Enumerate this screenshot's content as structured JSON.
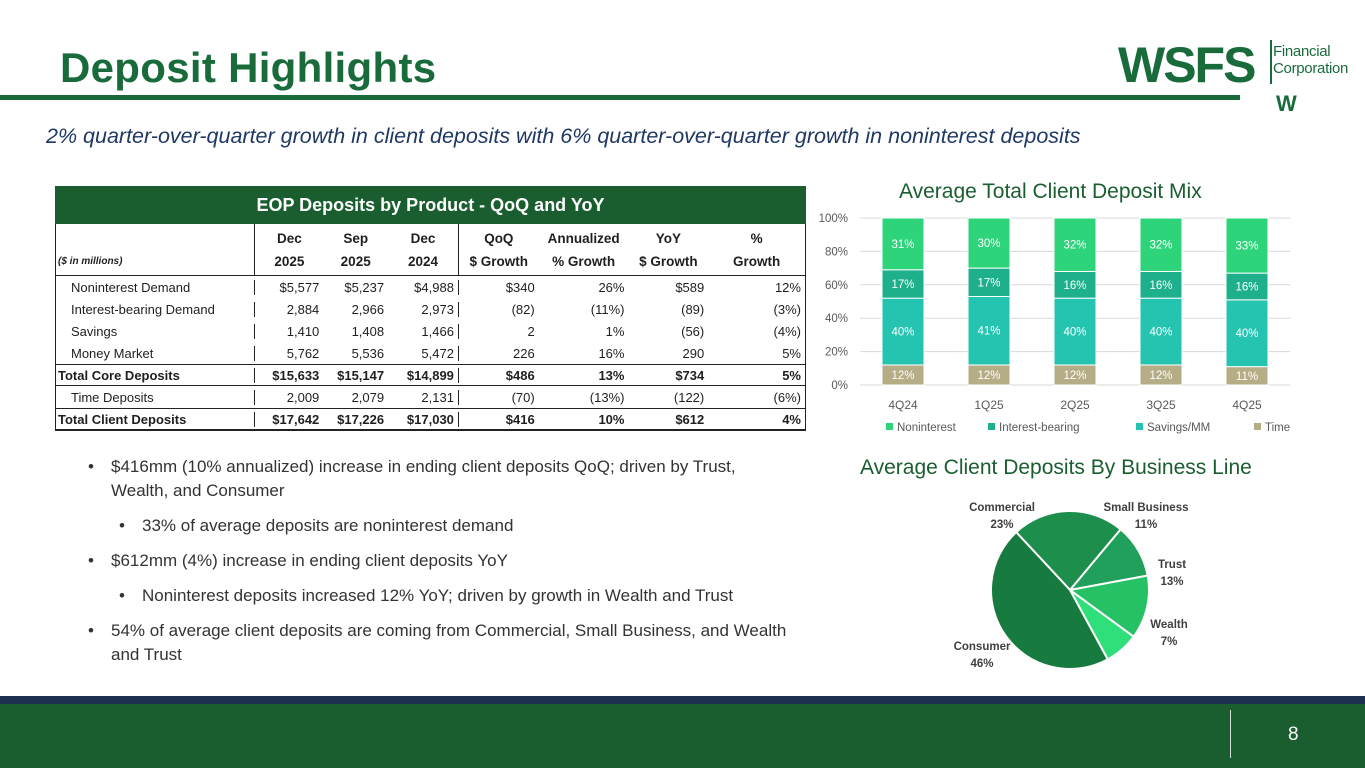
{
  "header": {
    "title": "Deposit Highlights",
    "subtitle": "2% quarter-over-quarter growth in client deposits with 6% quarter-over-quarter growth in noninterest deposits"
  },
  "logo": {
    "word": "WSFS",
    "line1": "Financial",
    "line2": "Corporation",
    "mark": "W"
  },
  "colors": {
    "brand_green": "#1a6b3c",
    "dark_green": "#1a5e30",
    "navy": "#1c3050",
    "noninterest": "#2dd47a",
    "interest_bearing": "#1db08a",
    "savings_mm": "#25c4b0",
    "time": "#b5ad85"
  },
  "table": {
    "title": "EOP Deposits by Product - QoQ and YoY",
    "unit_label": "($ in millions)",
    "headers": [
      [
        "Dec",
        "2025"
      ],
      [
        "Sep",
        "2025"
      ],
      [
        "Dec",
        "2024"
      ],
      [
        "QoQ",
        "$ Growth"
      ],
      [
        "Annualized",
        "% Growth"
      ],
      [
        "YoY",
        "$ Growth"
      ],
      [
        "%",
        "Growth"
      ]
    ],
    "rows": [
      {
        "label": "Noninterest Demand",
        "bold": false,
        "cells": [
          "$5,577",
          "$5,237",
          "$4,988",
          "$340",
          "26%",
          "$589",
          "12%"
        ]
      },
      {
        "label": "Interest-bearing Demand",
        "bold": false,
        "cells": [
          "2,884",
          "2,966",
          "2,973",
          "(82)",
          "(11%)",
          "(89)",
          "(3%)"
        ]
      },
      {
        "label": "Savings",
        "bold": false,
        "cells": [
          "1,410",
          "1,408",
          "1,466",
          "2",
          "1%",
          "(56)",
          "(4%)"
        ]
      },
      {
        "label": "Money Market",
        "bold": false,
        "cells": [
          "5,762",
          "5,536",
          "5,472",
          "226",
          "16%",
          "290",
          "5%"
        ]
      },
      {
        "label": "Total Core Deposits",
        "bold": true,
        "cells": [
          "$15,633",
          "$15,147",
          "$14,899",
          "$486",
          "13%",
          "$734",
          "5%"
        ]
      },
      {
        "label": "Time Deposits",
        "bold": false,
        "cells": [
          "2,009",
          "2,079",
          "2,131",
          "(70)",
          "(13%)",
          "(122)",
          "(6%)"
        ]
      },
      {
        "label": "Total Client Deposits",
        "bold": true,
        "cells": [
          "$17,642",
          "$17,226",
          "$17,030",
          "$416",
          "10%",
          "$612",
          "4%"
        ]
      }
    ]
  },
  "bullets": [
    {
      "level": 1,
      "text": "$416mm (10% annualized) increase in ending client deposits QoQ; driven by Trust, Wealth, and Consumer"
    },
    {
      "level": 2,
      "text": "33% of average deposits are noninterest demand"
    },
    {
      "level": 1,
      "text": "$612mm (4%) increase in ending client deposits YoY"
    },
    {
      "level": 2,
      "text": "Noninterest deposits increased 12% YoY; driven by growth in Wealth and Trust"
    },
    {
      "level": 1,
      "text": "54% of average client deposits are coming from Commercial, Small Business, and Wealth and Trust"
    }
  ],
  "bullet_glyph": "•",
  "chart_data": [
    {
      "type": "bar",
      "stacked": true,
      "title": "Average Total Client Deposit Mix",
      "categories": [
        "4Q24",
        "1Q25",
        "2Q25",
        "3Q25",
        "4Q25"
      ],
      "series": [
        {
          "name": "Time",
          "values": [
            12,
            12,
            12,
            12,
            11
          ],
          "labels": [
            "12%",
            "12%",
            "12%",
            "12%",
            "11%"
          ]
        },
        {
          "name": "Savings/MM",
          "values": [
            40,
            41,
            40,
            40,
            40
          ],
          "labels": [
            "40%",
            "41%",
            "40%",
            "40%",
            "40%"
          ]
        },
        {
          "name": "Interest-bearing",
          "values": [
            17,
            17,
            16,
            16,
            16
          ],
          "labels": [
            "17%",
            "17%",
            "16%",
            "16%",
            "16%"
          ]
        },
        {
          "name": "Noninterest",
          "values": [
            31,
            30,
            32,
            32,
            33
          ],
          "labels": [
            "31%",
            "30%",
            "32%",
            "32%",
            "33%"
          ]
        }
      ],
      "ylim": [
        0,
        100
      ],
      "yticks": [
        "0%",
        "20%",
        "40%",
        "60%",
        "80%",
        "100%"
      ],
      "legend": [
        "Noninterest",
        "Interest-bearing",
        "Savings/MM",
        "Time"
      ],
      "legend_position": "bottom",
      "grid": true
    },
    {
      "type": "pie",
      "title": "Average Client Deposits By Business Line",
      "slices": [
        {
          "name": "Commercial",
          "value": 23,
          "label": "23%"
        },
        {
          "name": "Small Business",
          "value": 11,
          "label": "11%"
        },
        {
          "name": "Trust",
          "value": 13,
          "label": "13%"
        },
        {
          "name": "Wealth",
          "value": 7,
          "label": "7%"
        },
        {
          "name": "Consumer",
          "value": 46,
          "label": "46%"
        }
      ]
    }
  ],
  "page_number": "8"
}
